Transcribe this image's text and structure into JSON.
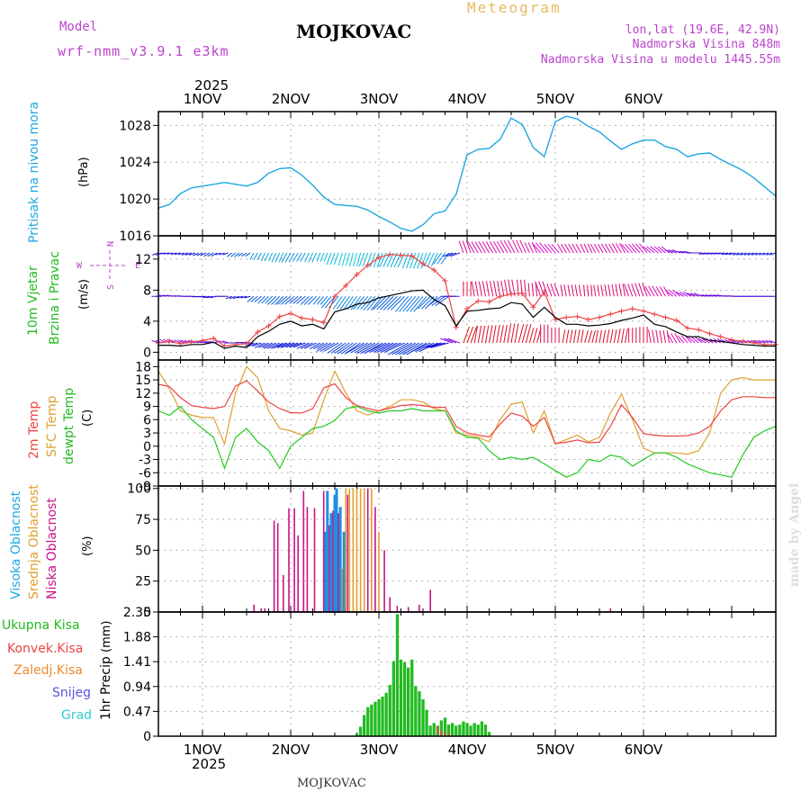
{
  "header": {
    "meteogram_label": "Meteogram",
    "station": "MOJKOVAC",
    "model_label": "Model",
    "model_name": "wrf-nmm_v3.9.1 e3km",
    "lonlat": "lon,lat (19.6E, 42.9N)",
    "elevation": "Nadmorska Visina 848m",
    "model_elevation": "Nadmorska Visina u modelu 1445.55m",
    "footer_station": "MOJKOVAC",
    "credit": "made by Angel",
    "year_top": "2025",
    "year_bottom": "2025"
  },
  "colors": {
    "pressure": "#1ea7e1",
    "temp2m": "#ee4444",
    "sfc_temp": "#e0a030",
    "dewpoint": "#22cc22",
    "wind_speed": "#000000",
    "gust": "#ee4444",
    "high_cloud": "#1e90e0",
    "mid_cloud": "#e0a030",
    "low_cloud": "#cc1188",
    "total_precip": "#22bb22",
    "conv_precip": "#ee4444",
    "frozen_precip": "#ee8833",
    "snow": "#5555dd",
    "hail": "#33cccc",
    "label_purple": "#bb44cc",
    "label_orange": "#e8b860"
  },
  "chart_data": {
    "type": "line",
    "time_axis": {
      "unit": "hours from 1NOV 00UTC",
      "range": [
        -12,
        156
      ],
      "day_ticks": [
        "1NOV",
        "2NOV",
        "3NOV",
        "4NOV",
        "5NOV",
        "6NOV"
      ],
      "day_tick_hours": [
        0,
        24,
        48,
        72,
        96,
        120
      ]
    },
    "panels": {
      "pressure": {
        "ylabel": "Pritisak na nivou mora",
        "unit": "(hPa)",
        "ylim": [
          1016,
          1029.5
        ],
        "ticks": [
          "1016",
          "1020",
          "1024",
          "1028"
        ],
        "tick_values": [
          1016,
          1020,
          1024,
          1028
        ],
        "x": [
          -12,
          -9,
          -6,
          -3,
          0,
          3,
          6,
          9,
          12,
          15,
          18,
          21,
          24,
          27,
          30,
          33,
          36,
          39,
          42,
          45,
          48,
          51,
          54,
          57,
          60,
          63,
          66,
          69,
          72,
          75,
          78,
          81,
          84,
          87,
          90,
          93,
          96,
          99,
          102,
          105,
          108,
          111,
          114,
          117,
          120,
          123,
          126,
          129,
          132,
          135,
          138,
          141,
          144,
          147,
          150,
          153,
          156
        ],
        "values": [
          1019.0,
          1019.4,
          1020.6,
          1021.2,
          1021.4,
          1021.6,
          1021.8,
          1021.6,
          1021.4,
          1021.8,
          1022.8,
          1023.3,
          1023.4,
          1022.6,
          1021.5,
          1020.2,
          1019.4,
          1019.3,
          1019.2,
          1018.8,
          1018.1,
          1017.5,
          1016.8,
          1016.5,
          1017.2,
          1018.4,
          1018.7,
          1020.5,
          1024.8,
          1025.4,
          1025.5,
          1026.5,
          1028.8,
          1028.1,
          1025.6,
          1024.6,
          1028.4,
          1029.0,
          1028.7,
          1027.9,
          1027.3,
          1026.3,
          1025.4,
          1026.0,
          1026.4,
          1026.4,
          1025.7,
          1025.4,
          1024.6,
          1024.9,
          1025.0,
          1024.3,
          1023.7,
          1023.1,
          1022.3,
          1021.3,
          1020.3
        ]
      },
      "wind": {
        "ylabel_line1": "10m Vjetar",
        "ylabel_line2": "Brzina i Pravac",
        "unit": "(m/s)",
        "ylim": [
          -1,
          15
        ],
        "ticks": [
          "0",
          "4",
          "8",
          "12"
        ],
        "tick_values": [
          0,
          4,
          8,
          12
        ],
        "compass": [
          "N",
          "S",
          "W",
          "E"
        ],
        "x": [
          -12,
          -9,
          -6,
          -3,
          0,
          3,
          6,
          9,
          12,
          15,
          18,
          21,
          24,
          27,
          30,
          33,
          36,
          39,
          42,
          45,
          48,
          51,
          54,
          57,
          60,
          63,
          66,
          69,
          72,
          75,
          78,
          81,
          84,
          87,
          90,
          93,
          96,
          99,
          102,
          105,
          108,
          111,
          114,
          117,
          120,
          123,
          126,
          129,
          132,
          135,
          138,
          141,
          144,
          147,
          150,
          153,
          156
        ],
        "speed": [
          0.9,
          0.9,
          0.8,
          1.0,
          1.0,
          1.3,
          0.5,
          0.8,
          0.6,
          2.0,
          2.7,
          3.6,
          4.0,
          3.4,
          3.6,
          3.0,
          5.2,
          5.6,
          6.2,
          6.4,
          7.0,
          7.3,
          7.6,
          7.9,
          8.0,
          6.8,
          6.0,
          3.4,
          5.3,
          5.4,
          5.6,
          5.7,
          6.4,
          6.2,
          4.5,
          5.8,
          4.5,
          3.6,
          3.6,
          3.4,
          3.5,
          3.7,
          4.1,
          4.4,
          4.8,
          3.6,
          3.3,
          2.6,
          2.0,
          2.0,
          1.5,
          1.4,
          1.2,
          1.0,
          0.9,
          0.8,
          0.8
        ],
        "gust": [
          1.2,
          1.4,
          1.1,
          1.3,
          1.5,
          1.8,
          0.8,
          1.0,
          1.1,
          2.6,
          3.4,
          4.6,
          5.0,
          4.4,
          4.2,
          3.8,
          7.2,
          8.6,
          10.0,
          11.2,
          12.2,
          12.6,
          12.5,
          12.4,
          11.4,
          10.6,
          9.2,
          3.2,
          5.6,
          6.6,
          6.5,
          7.2,
          7.5,
          7.6,
          5.8,
          7.8,
          4.2,
          4.5,
          4.6,
          4.2,
          4.5,
          4.9,
          5.3,
          5.6,
          5.3,
          4.9,
          4.5,
          4.1,
          3.1,
          2.9,
          2.4,
          2.0,
          1.6,
          1.4,
          1.2,
          1.0,
          1.0
        ],
        "direction_deg": [
          250,
          260,
          255,
          250,
          245,
          240,
          250,
          230,
          235,
          210,
          205,
          205,
          210,
          210,
          205,
          200,
          200,
          195,
          195,
          200,
          200,
          205,
          205,
          200,
          200,
          205,
          215,
          250,
          340,
          330,
          330,
          330,
          330,
          335,
          335,
          320,
          320,
          330,
          330,
          335,
          330,
          330,
          330,
          320,
          320,
          310,
          310,
          290,
          280,
          270,
          260,
          260,
          255,
          250,
          250,
          250,
          250
        ]
      },
      "temperature": {
        "ylabel_temp2m": "2m Temp",
        "ylabel_sfc": "SFC Temp",
        "ylabel_dew": "dewpt Temp",
        "unit": "(C)",
        "ylim": [
          -9,
          19.5
        ],
        "ticks": [
          "-9",
          "-6",
          "-3",
          "0",
          "3",
          "6",
          "9",
          "12",
          "15",
          "18"
        ],
        "tick_values": [
          -9,
          -6,
          -3,
          0,
          3,
          6,
          9,
          12,
          15,
          18
        ],
        "x": [
          -12,
          -9,
          -6,
          -3,
          0,
          3,
          6,
          9,
          12,
          15,
          18,
          21,
          24,
          27,
          30,
          33,
          36,
          39,
          42,
          45,
          48,
          51,
          54,
          57,
          60,
          63,
          66,
          69,
          72,
          75,
          78,
          81,
          84,
          87,
          90,
          93,
          96,
          99,
          102,
          105,
          108,
          111,
          114,
          117,
          120,
          123,
          126,
          129,
          132,
          135,
          138,
          141,
          144,
          147,
          150,
          153,
          156
        ],
        "temp2m": [
          14.0,
          13.5,
          11.0,
          9.2,
          8.8,
          8.5,
          9.0,
          13.6,
          14.8,
          12.5,
          10.0,
          8.5,
          7.6,
          7.5,
          8.5,
          13.2,
          14.1,
          11.0,
          9.2,
          8.5,
          8.0,
          8.6,
          9.2,
          9.4,
          9.2,
          8.8,
          8.8,
          4.5,
          3.0,
          2.5,
          2.1,
          5.0,
          7.5,
          6.8,
          4.5,
          6.5,
          0.6,
          0.9,
          1.4,
          0.8,
          0.9,
          4.5,
          9.4,
          6.5,
          2.8,
          2.5,
          2.3,
          2.3,
          2.4,
          3.0,
          4.5,
          8.0,
          10.5,
          11.2,
          11.2,
          11.0,
          11.0
        ],
        "sfc_temp": [
          17.0,
          13.0,
          8.0,
          7.0,
          6.5,
          6.5,
          0.5,
          12.0,
          18.0,
          15.5,
          8.0,
          4.0,
          3.5,
          2.5,
          3.0,
          10.5,
          17.0,
          12.0,
          8.0,
          7.0,
          8.0,
          9.0,
          10.5,
          10.5,
          10.0,
          8.5,
          8.0,
          3.0,
          2.5,
          2.0,
          1.0,
          6.0,
          9.5,
          10.0,
          3.0,
          8.0,
          0.5,
          1.5,
          2.5,
          1.0,
          2.0,
          7.5,
          11.8,
          6.0,
          -0.5,
          -1.5,
          -1.5,
          -1.5,
          -1.8,
          -1.0,
          3.0,
          12.0,
          15.0,
          15.5,
          15.0,
          15.0,
          15.0
        ],
        "dewpt": [
          8.0,
          7.0,
          9.0,
          6.0,
          4.0,
          2.0,
          -5.0,
          2.0,
          4.0,
          1.0,
          -1.0,
          -5.0,
          0.0,
          2.0,
          4.0,
          4.5,
          5.8,
          8.5,
          9.0,
          8.0,
          7.5,
          8.0,
          8.0,
          8.5,
          8.0,
          8.0,
          8.0,
          3.5,
          2.0,
          1.8,
          -1.0,
          -3.0,
          -2.5,
          -3.0,
          -2.5,
          -4.0,
          -5.5,
          -7.0,
          -6.0,
          -3.0,
          -3.5,
          -2.0,
          -2.5,
          -4.5,
          -3.0,
          -1.5,
          -1.5,
          -2.5,
          -4.0,
          -5.0,
          -6.0,
          -6.5,
          -7.0,
          -2.0,
          2.0,
          3.5,
          4.5
        ]
      },
      "clouds": {
        "ylabel_high": "Visoka Oblacnost",
        "ylabel_mid": "Srednja Oblacnost",
        "ylabel_low": "Niska Oblacnost",
        "unit": "(%)",
        "ylim": [
          0,
          102
        ],
        "ticks": [
          "0",
          "25",
          "50",
          "75",
          "100"
        ],
        "tick_values": [
          0,
          25,
          50,
          75,
          100
        ],
        "bars": [
          {
            "x": 14,
            "layer": "low",
            "value": 6
          },
          {
            "x": 16,
            "layer": "low",
            "value": 3
          },
          {
            "x": 17,
            "layer": "low",
            "value": 3
          },
          {
            "x": 19.5,
            "layer": "low",
            "value": 74
          },
          {
            "x": 20.5,
            "layer": "low",
            "value": 72
          },
          {
            "x": 22,
            "layer": "low",
            "value": 30
          },
          {
            "x": 23.5,
            "layer": "low",
            "value": 84
          },
          {
            "x": 25,
            "layer": "low",
            "value": 84
          },
          {
            "x": 26,
            "layer": "low",
            "value": 62
          },
          {
            "x": 27.5,
            "layer": "low",
            "value": 98
          },
          {
            "x": 28.5,
            "layer": "low",
            "value": 85
          },
          {
            "x": 30.5,
            "layer": "low",
            "value": 84
          },
          {
            "x": 33,
            "layer": "low",
            "value": 98
          },
          {
            "x": 33.5,
            "layer": "high",
            "value": 65
          },
          {
            "x": 34,
            "layer": "high",
            "value": 98
          },
          {
            "x": 34.5,
            "layer": "low",
            "value": 70
          },
          {
            "x": 35,
            "layer": "high",
            "value": 80
          },
          {
            "x": 35.5,
            "layer": "low",
            "value": 82
          },
          {
            "x": 36,
            "layer": "high",
            "value": 95
          },
          {
            "x": 36.5,
            "layer": "high",
            "value": 100
          },
          {
            "x": 37,
            "layer": "low",
            "value": 80
          },
          {
            "x": 37.5,
            "layer": "high",
            "value": 85
          },
          {
            "x": 38,
            "layer": "mid",
            "value": 35
          },
          {
            "x": 38.5,
            "layer": "high",
            "value": 65
          },
          {
            "x": 39,
            "layer": "mid",
            "value": 100
          },
          {
            "x": 39.5,
            "layer": "low",
            "value": 95
          },
          {
            "x": 40,
            "layer": "mid",
            "value": 100
          },
          {
            "x": 41,
            "layer": "mid",
            "value": 100
          },
          {
            "x": 42,
            "layer": "mid",
            "value": 100
          },
          {
            "x": 43,
            "layer": "mid",
            "value": 100
          },
          {
            "x": 44,
            "layer": "mid",
            "value": 100
          },
          {
            "x": 45,
            "layer": "low",
            "value": 100
          },
          {
            "x": 46,
            "layer": "mid",
            "value": 100
          },
          {
            "x": 47,
            "layer": "low",
            "value": 85
          },
          {
            "x": 48,
            "layer": "mid",
            "value": 65
          },
          {
            "x": 49.5,
            "layer": "low",
            "value": 50
          },
          {
            "x": 51,
            "layer": "low",
            "value": 12
          },
          {
            "x": 53,
            "layer": "low",
            "value": 5
          },
          {
            "x": 56,
            "layer": "low",
            "value": 4
          },
          {
            "x": 59,
            "layer": "low",
            "value": 6
          },
          {
            "x": 62,
            "layer": "low",
            "value": 18
          },
          {
            "x": 111,
            "layer": "low",
            "value": 3
          }
        ]
      },
      "precipitation": {
        "ylabel": "1hr Precip",
        "unit": "(mm)",
        "legend": [
          "Ukupna Kisa",
          "Konvek.Kisa",
          "Zaledj.Kisa",
          "Snijeg",
          "Grad"
        ],
        "ylim": [
          0,
          2.35
        ],
        "ticks": [
          "0",
          "0.47",
          "0.94",
          "1.41",
          "1.88",
          "2.35"
        ],
        "tick_values": [
          0,
          0.47,
          0.94,
          1.41,
          1.88,
          2.35
        ],
        "total_x": [
          42,
          43,
          44,
          45,
          46,
          47,
          48,
          49,
          50,
          51,
          52,
          53,
          54,
          55,
          56,
          57,
          58,
          59,
          60,
          61,
          62,
          63,
          64,
          65,
          66,
          67,
          68,
          69,
          70,
          71,
          72,
          73,
          74,
          75,
          76,
          77,
          78
        ],
        "total": [
          0.05,
          0.18,
          0.4,
          0.55,
          0.6,
          0.65,
          0.7,
          0.75,
          0.82,
          0.97,
          1.42,
          2.31,
          1.45,
          1.4,
          1.3,
          1.45,
          0.95,
          0.85,
          0.7,
          0.5,
          0.2,
          0.25,
          0.2,
          0.3,
          0.35,
          0.22,
          0.25,
          0.2,
          0.22,
          0.28,
          0.25,
          0.2,
          0.25,
          0.22,
          0.28,
          0.22,
          0.08
        ],
        "conv_x": [
          64,
          65,
          66,
          67
        ],
        "conv": [
          0.2,
          0.12,
          0.08,
          0.06
        ]
      }
    }
  }
}
